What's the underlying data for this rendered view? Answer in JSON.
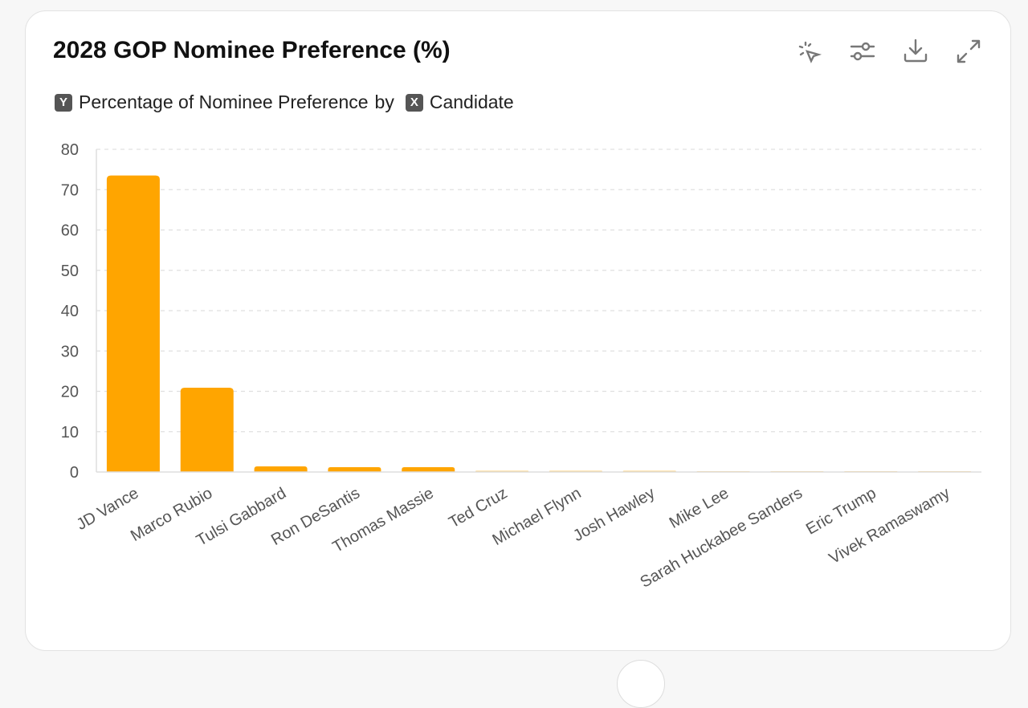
{
  "header": {
    "title": "2028 GOP Nominee Preference (%)",
    "subtitle_y_badge": "Y",
    "subtitle_y": "Percentage of Nominee Preference",
    "subtitle_by": "by",
    "subtitle_x_badge": "X",
    "subtitle_x": "Candidate"
  },
  "toolbar": [
    "select-pointer-icon",
    "sliders-icon",
    "download-icon",
    "expand-icon"
  ],
  "colors": {
    "bar": "#FFA500",
    "grid": "#e0e0e0"
  },
  "chart_data": {
    "type": "bar",
    "title": "2028 GOP Nominee Preference (%)",
    "xlabel": "Candidate",
    "ylabel": "Percentage of Nominee Preference",
    "categories": [
      "JD Vance",
      "Marco Rubio",
      "Tulsi Gabbard",
      "Ron DeSantis",
      "Thomas Massie",
      "Ted Cruz",
      "Michael Flynn",
      "Josh Hawley",
      "Mike Lee",
      "Sarah Huckabee Sanders",
      "Eric Trump",
      "Vivek Ramaswamy"
    ],
    "values": [
      73.5,
      20.9,
      1.4,
      1.2,
      1.2,
      0.3,
      0.3,
      0.3,
      0.2,
      0.2,
      0.1,
      0.1
    ],
    "ylim": [
      0,
      80
    ],
    "yticks": [
      0,
      10,
      20,
      30,
      40,
      50,
      60,
      70,
      80
    ],
    "grid": true
  }
}
